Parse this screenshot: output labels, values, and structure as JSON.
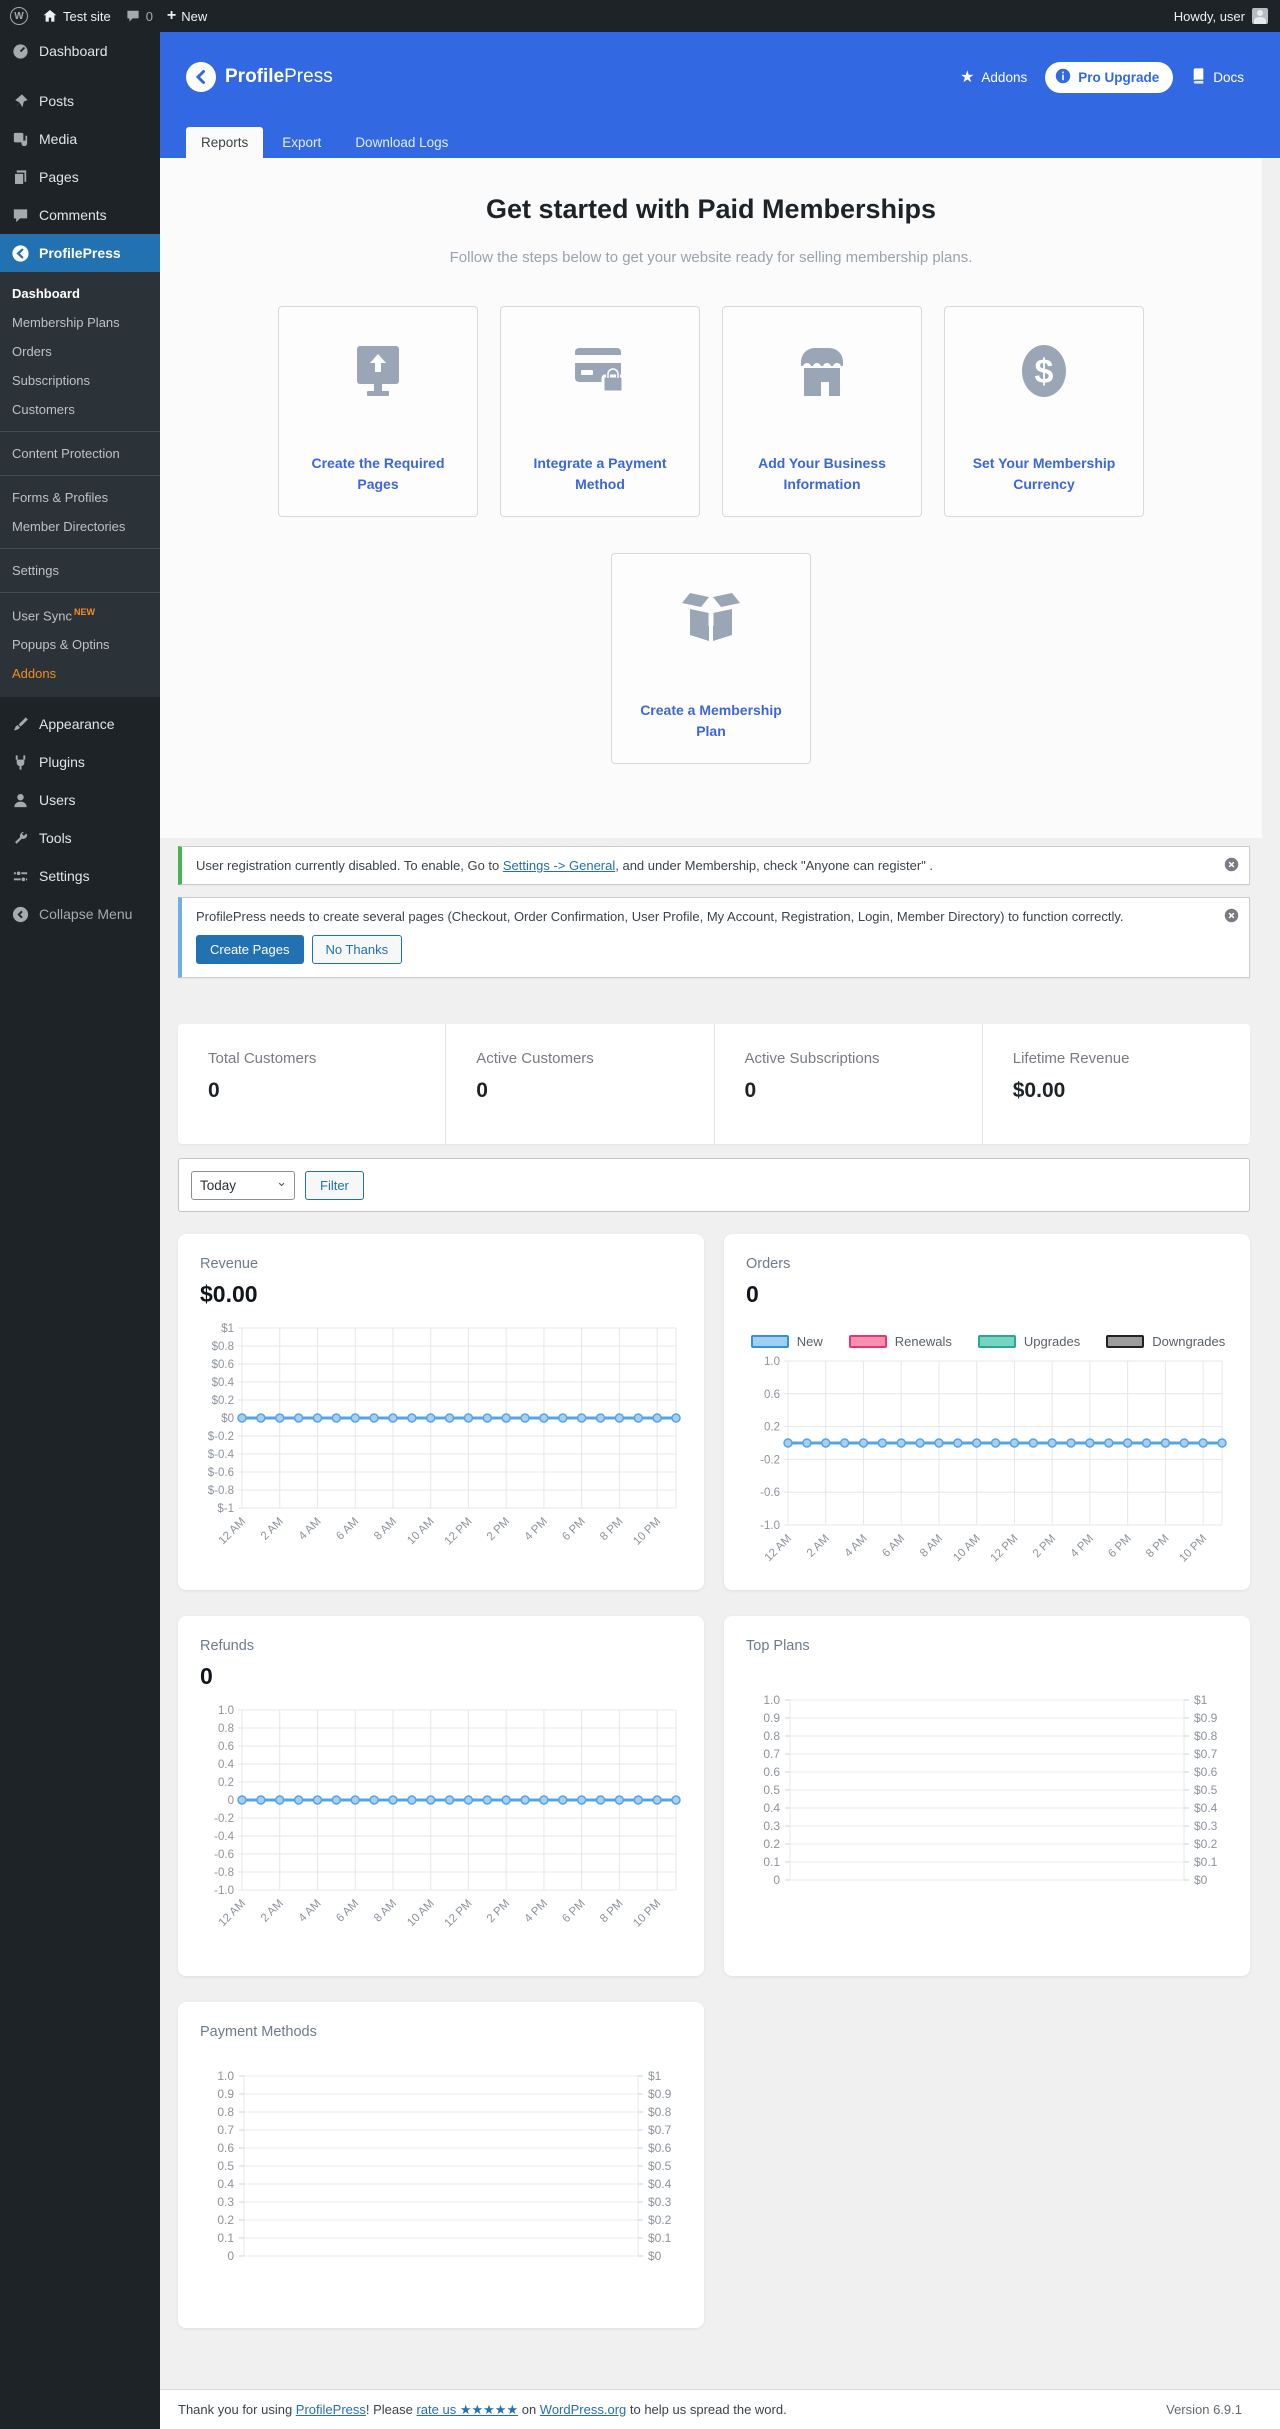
{
  "admin_bar": {
    "site_name": "Test site",
    "comments_count": "0",
    "new_label": "New",
    "howdy": "Howdy, user"
  },
  "sidebar": {
    "items": [
      {
        "label": "Dashboard"
      },
      {
        "label": "Posts"
      },
      {
        "label": "Media"
      },
      {
        "label": "Pages"
      },
      {
        "label": "Comments"
      },
      {
        "label": "ProfilePress"
      },
      {
        "label": "Appearance"
      },
      {
        "label": "Plugins"
      },
      {
        "label": "Users"
      },
      {
        "label": "Tools"
      },
      {
        "label": "Settings"
      },
      {
        "label": "Collapse Menu"
      }
    ],
    "submenu": [
      {
        "label": "Dashboard"
      },
      {
        "label": "Membership Plans"
      },
      {
        "label": "Orders"
      },
      {
        "label": "Subscriptions"
      },
      {
        "label": "Customers"
      },
      {
        "label": "Content Protection"
      },
      {
        "label": "Forms & Profiles"
      },
      {
        "label": "Member Directories"
      },
      {
        "label": "Settings"
      },
      {
        "label": "User Sync",
        "badge": "NEW"
      },
      {
        "label": "Popups & Optins"
      },
      {
        "label": "Addons"
      }
    ]
  },
  "header": {
    "brand_bold": "Profile",
    "brand_light": "Press",
    "addons_label": "Addons",
    "pro_upgrade_label": "Pro Upgrade",
    "docs_label": "Docs"
  },
  "tabs": [
    {
      "label": "Reports"
    },
    {
      "label": "Export"
    },
    {
      "label": "Download Logs"
    }
  ],
  "get_started": {
    "title": "Get started with Paid Memberships",
    "subtitle": "Follow the steps below to get your website ready for selling membership plans.",
    "cards": [
      {
        "label": "Create the Required Pages",
        "icon": "monitor-upload"
      },
      {
        "label": "Integrate a Payment Method",
        "icon": "credit-card-lock"
      },
      {
        "label": "Add Your Business Information",
        "icon": "storefront"
      },
      {
        "label": "Set Your Membership Currency",
        "icon": "dollar-circle"
      },
      {
        "label": "Create a Membership Plan",
        "icon": "open-box"
      }
    ]
  },
  "notices": [
    {
      "pre": "User registration currently disabled. To enable, Go to ",
      "link": "Settings -> General",
      "post": ", and under Membership, check \"Anyone can register\" ."
    },
    {
      "text": "ProfilePress needs to create several pages (Checkout, Order Confirmation, User Profile, My Account, Registration, Login, Member Directory) to function correctly.",
      "primary_button": "Create Pages",
      "secondary_button": "No Thanks"
    }
  ],
  "stats": [
    {
      "label": "Total Customers",
      "value": "0"
    },
    {
      "label": "Active Customers",
      "value": "0"
    },
    {
      "label": "Active Subscriptions",
      "value": "0"
    },
    {
      "label": "Lifetime Revenue",
      "value": "$0.00"
    }
  ],
  "filter": {
    "period": "Today",
    "button": "Filter"
  },
  "chart_data": [
    {
      "type": "line",
      "title": "Revenue",
      "display_value": "$0.00",
      "x": [
        "12 AM",
        "2 AM",
        "4 AM",
        "6 AM",
        "8 AM",
        "10 AM",
        "12 PM",
        "2 PM",
        "4 PM",
        "6 PM",
        "8 PM",
        "10 PM"
      ],
      "series": [
        {
          "name": "Revenue",
          "color": "#57a4e4",
          "values": [
            0,
            0,
            0,
            0,
            0,
            0,
            0,
            0,
            0,
            0,
            0,
            0,
            0,
            0,
            0,
            0,
            0,
            0,
            0,
            0,
            0,
            0,
            0,
            0
          ]
        }
      ],
      "y_ticks": [
        "$1",
        "$0.8",
        "$0.6",
        "$0.4",
        "$0.2",
        "$0",
        "$-0.2",
        "$-0.4",
        "$-0.6",
        "$-0.8",
        "$-1"
      ],
      "ylim": [
        -1,
        1
      ],
      "grid": true
    },
    {
      "type": "line",
      "title": "Orders",
      "display_value": "0",
      "x": [
        "12 AM",
        "2 AM",
        "4 AM",
        "6 AM",
        "8 AM",
        "10 AM",
        "12 PM",
        "2 PM",
        "4 PM",
        "6 PM",
        "8 PM",
        "10 PM"
      ],
      "series": [
        {
          "name": "Orders",
          "color": "#57a4e4",
          "values": [
            0,
            0,
            0,
            0,
            0,
            0,
            0,
            0,
            0,
            0,
            0,
            0,
            0,
            0,
            0,
            0,
            0,
            0,
            0,
            0,
            0,
            0,
            0,
            0
          ]
        }
      ],
      "y_ticks": [
        "1.0",
        "0.6",
        "0.2",
        "-0.2",
        "-0.6",
        "-1.0"
      ],
      "ylim": [
        -1,
        1
      ],
      "grid": true,
      "legend": [
        {
          "label": "New",
          "fill": "#9ecff5",
          "stroke": "#3e8ed6"
        },
        {
          "label": "Renewals",
          "fill": "#f78fb0",
          "stroke": "#e8376b"
        },
        {
          "label": "Upgrades",
          "fill": "#79d3c3",
          "stroke": "#2aa893"
        },
        {
          "label": "Downgrades",
          "fill": "#9c9c9c",
          "stroke": "#222222"
        }
      ]
    },
    {
      "type": "line",
      "title": "Refunds",
      "display_value": "0",
      "x": [
        "12 AM",
        "2 AM",
        "4 AM",
        "6 AM",
        "8 AM",
        "10 AM",
        "12 PM",
        "2 PM",
        "4 PM",
        "6 PM",
        "8 PM",
        "10 PM"
      ],
      "series": [
        {
          "name": "Refunds",
          "color": "#57a4e4",
          "values": [
            0,
            0,
            0,
            0,
            0,
            0,
            0,
            0,
            0,
            0,
            0,
            0,
            0,
            0,
            0,
            0,
            0,
            0,
            0,
            0,
            0,
            0,
            0,
            0
          ]
        }
      ],
      "y_ticks": [
        "1.0",
        "0.8",
        "0.6",
        "0.4",
        "0.2",
        "0",
        "-0.2",
        "-0.4",
        "-0.6",
        "-0.8",
        "-1.0"
      ],
      "ylim": [
        -1,
        1
      ],
      "grid": true
    },
    {
      "type": "empty_dual",
      "title": "Top Plans",
      "left_ticks": [
        "1.0",
        "0.9",
        "0.8",
        "0.7",
        "0.6",
        "0.5",
        "0.4",
        "0.3",
        "0.2",
        "0.1",
        "0"
      ],
      "right_ticks": [
        "$1",
        "$0.9",
        "$0.8",
        "$0.7",
        "$0.6",
        "$0.5",
        "$0.4",
        "$0.3",
        "$0.2",
        "$0.1",
        "$0"
      ]
    },
    {
      "type": "empty_dual",
      "title": "Payment Methods",
      "left_ticks": [
        "1.0",
        "0.9",
        "0.8",
        "0.7",
        "0.6",
        "0.5",
        "0.4",
        "0.3",
        "0.2",
        "0.1",
        "0"
      ],
      "right_ticks": [
        "$1",
        "$0.9",
        "$0.8",
        "$0.7",
        "$0.6",
        "$0.5",
        "$0.4",
        "$0.3",
        "$0.2",
        "$0.1",
        "$0"
      ]
    }
  ],
  "footer": {
    "pre": "Thank you for using ",
    "link1": "ProfilePress",
    "mid1": "! Please ",
    "link2": "rate us ★★★★★",
    "mid2": " on ",
    "link3": "WordPress.org",
    "post": " to help us spread the word.",
    "version": "Version 6.9.1"
  },
  "colors": {
    "admin_dark": "#1d2327",
    "wp_accent_blue": "#2271b1",
    "pp_header_blue": "#3268e1",
    "notice_green": "#46b450",
    "notice_blue": "#72aee6",
    "chart_line_blue": "#57a4e4",
    "card_link_blue": "#3d66d8",
    "addon_orange": "#f08d21"
  }
}
